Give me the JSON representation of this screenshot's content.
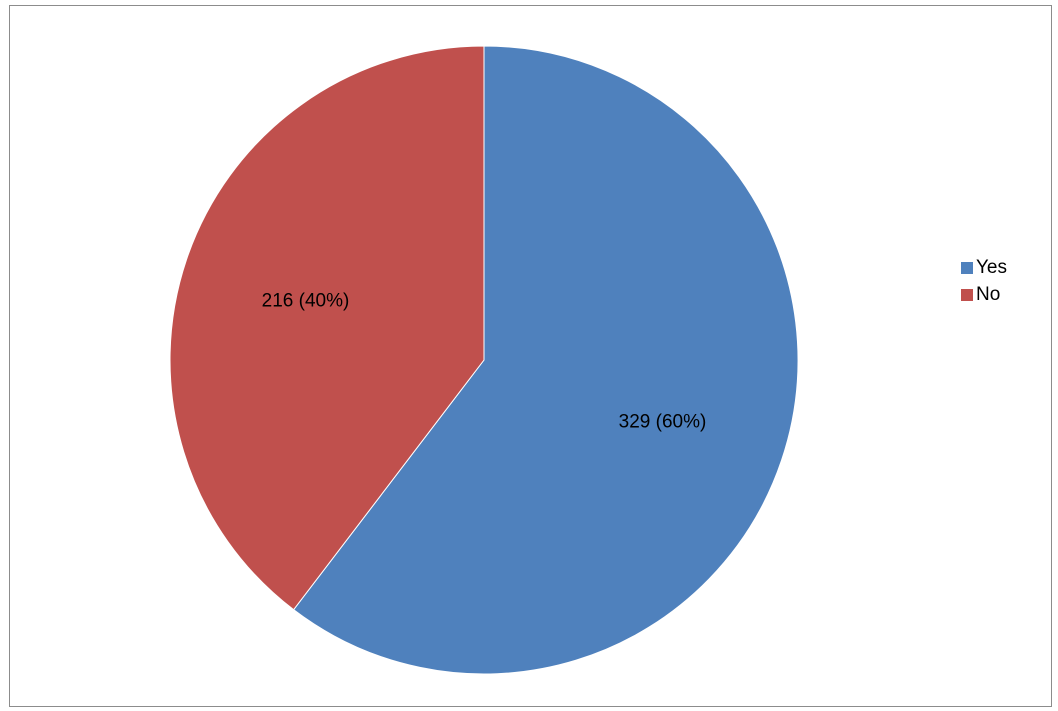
{
  "chart_data": {
    "type": "pie",
    "categories": [
      "Yes",
      "No"
    ],
    "values": [
      329,
      216
    ],
    "percentages": [
      60,
      40
    ],
    "labels": [
      "329 (60%)",
      "216 (40%)"
    ],
    "colors": [
      "#4F81BD",
      "#C0504D"
    ],
    "start_angle": "12 o'clock, clockwise",
    "legend_position": "right",
    "title": ""
  },
  "legend": {
    "items": [
      {
        "label": "Yes",
        "color": "#4F81BD"
      },
      {
        "label": "No",
        "color": "#C0504D"
      }
    ]
  }
}
